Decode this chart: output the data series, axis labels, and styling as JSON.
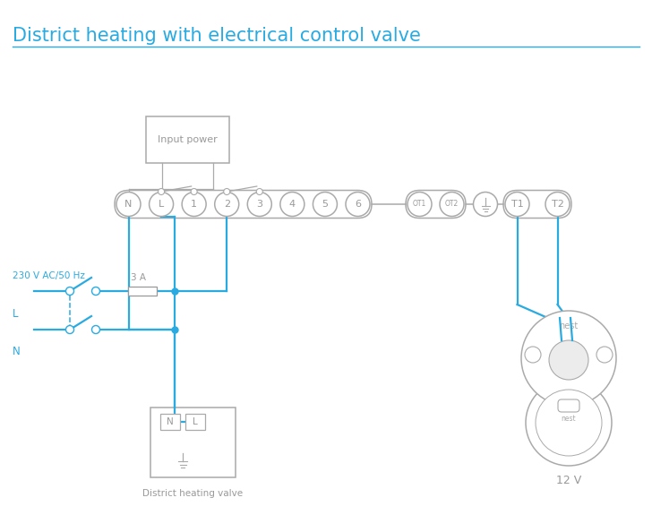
{
  "title": "District heating with electrical control valve",
  "title_color": "#29abe2",
  "bg_color": "#ffffff",
  "wire_color": "#29abe2",
  "gray": "#999999",
  "lgray": "#aaaaaa",
  "terminal_labels": [
    "N",
    "L",
    "1",
    "2",
    "3",
    "4",
    "5",
    "6"
  ],
  "ot_labels": [
    "OT1",
    "OT2"
  ],
  "t_labels": [
    "T1",
    "T2"
  ],
  "label_230v": "230 V AC/50 Hz",
  "label_L": "L",
  "label_N": "N",
  "label_3A": "3 A",
  "label_input_power": "Input power",
  "label_district": "District heating valve",
  "label_12v": "12 V",
  "label_nest": "nest"
}
